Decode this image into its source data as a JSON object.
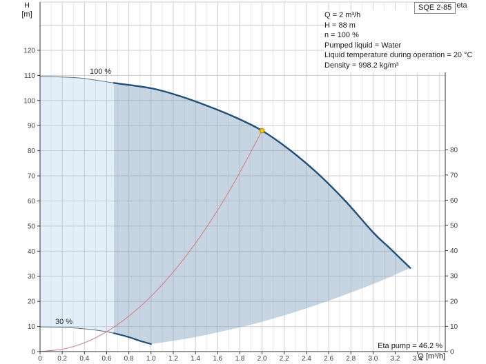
{
  "title_box": "SQE 2-85",
  "eta_pump_label": "Eta pump = 46.2 %",
  "curve_labels": {
    "max_speed": "100 %",
    "min_speed": "30 %"
  },
  "info_lines": [
    "Q = 2 m³/h",
    "H = 88 m",
    "n = 100 %",
    "Pumped liquid = Water",
    "Liquid temperature during operation = 20 °C",
    "Density = 998.2 kg/m³"
  ],
  "axes": {
    "left": {
      "title_line1": "H",
      "title_line2": "[m]"
    },
    "right": {
      "title_line1": "eta",
      "title_line2": "[%]"
    },
    "x": {
      "title": "Q [m³/h]"
    }
  },
  "chart_data": {
    "type": "line",
    "title": "SQE 2-85",
    "xlabel": "Q [m³/h]",
    "ylabel_left": "H [m]",
    "ylabel_right": "eta [%]",
    "x_range": [
      0,
      3.65
    ],
    "y_left_range": [
      0,
      139
    ],
    "y_right_visible_ticks_max": 80,
    "grid": {
      "x_major_step": 0.2,
      "x_minor_step": 0.1,
      "y_major_step": 10
    },
    "x_tick_labels": [
      "0",
      "0.2",
      "0.4",
      "0.6",
      "0.8",
      "1.0",
      "1.2",
      "1.4",
      "1.6",
      "1.8",
      "2.0",
      "2.2",
      "2.4",
      "2.6",
      "2.8",
      "3.0",
      "3.2",
      "3.4"
    ],
    "x_tick_values": [
      0,
      0.2,
      0.4,
      0.6,
      0.8,
      1.0,
      1.2,
      1.4,
      1.6,
      1.8,
      2.0,
      2.2,
      2.4,
      2.6,
      2.8,
      3.0,
      3.2,
      3.4
    ],
    "y_left_ticks": [
      0,
      10,
      20,
      30,
      40,
      50,
      60,
      70,
      80,
      90,
      100,
      110,
      120
    ],
    "y_right_ticks": [
      0,
      10,
      20,
      30,
      40,
      50,
      60,
      70,
      80
    ],
    "duty_point": {
      "q": 2,
      "h": 88,
      "eta_percent": 46.2,
      "fill": "#ffdf00",
      "stroke": "#c98e00"
    },
    "envelope": {
      "split_q": 0.665,
      "light_fill": "rgba(171,205,235,0.33)",
      "dark_fill": "rgba(136,163,193,0.47)"
    },
    "series": [
      {
        "name": "speed-100-curve",
        "label": "100 %",
        "role": "max-speed",
        "color": "#1f4e79",
        "thin_color": "#5f6e7d",
        "split_q": 0.665,
        "points": [
          [
            0,
            109.6
          ],
          [
            0.35,
            109.0
          ],
          [
            0.665,
            107.0
          ],
          [
            1.0,
            104.9
          ],
          [
            1.25,
            101.9
          ],
          [
            1.5,
            98.0
          ],
          [
            1.75,
            93.5
          ],
          [
            2.0,
            88.0
          ],
          [
            2.25,
            80.3
          ],
          [
            2.5,
            71.0
          ],
          [
            2.75,
            60.0
          ],
          [
            3.0,
            47.5
          ],
          [
            3.15,
            41.2
          ],
          [
            3.335,
            33.3
          ]
        ]
      },
      {
        "name": "speed-30-curve",
        "label": "30 %",
        "role": "min-speed",
        "color": "#1f4e79",
        "thin_color": "#5f6e7d",
        "split_q": 0.665,
        "points": [
          [
            0,
            9.86
          ],
          [
            0.2,
            9.63
          ],
          [
            0.3,
            9.44
          ],
          [
            0.45,
            8.82
          ],
          [
            0.6,
            7.92
          ],
          [
            0.665,
            7.32
          ],
          [
            0.75,
            6.39
          ],
          [
            0.825,
            5.4
          ],
          [
            0.9,
            4.28
          ],
          [
            1.0,
            3.0
          ]
        ]
      },
      {
        "name": "duty-parabola",
        "label": "",
        "role": "efficiency-parabola",
        "color": "#d08385",
        "points": [
          [
            0,
            0
          ],
          [
            0.25,
            1.4
          ],
          [
            0.5,
            5.5
          ],
          [
            0.75,
            12.4
          ],
          [
            1.0,
            22
          ],
          [
            1.25,
            34.4
          ],
          [
            1.5,
            49.5
          ],
          [
            1.75,
            67.4
          ],
          [
            2.0,
            88
          ]
        ]
      },
      {
        "name": "envelope-bottom-boundary",
        "label": "",
        "role": "fill-boundary",
        "color": "none",
        "points": [
          [
            1.0,
            3.0
          ],
          [
            1.2,
            4.3
          ],
          [
            1.5,
            6.7
          ],
          [
            2.0,
            11.9
          ],
          [
            2.5,
            18.7
          ],
          [
            3.0,
            26.9
          ],
          [
            3.335,
            33.3
          ]
        ]
      }
    ],
    "colors": {
      "grid_major": "#cccccc",
      "grid_minor": "#e9e9e9",
      "axis": "#333333",
      "tick_label": "#3c3c3c"
    }
  }
}
